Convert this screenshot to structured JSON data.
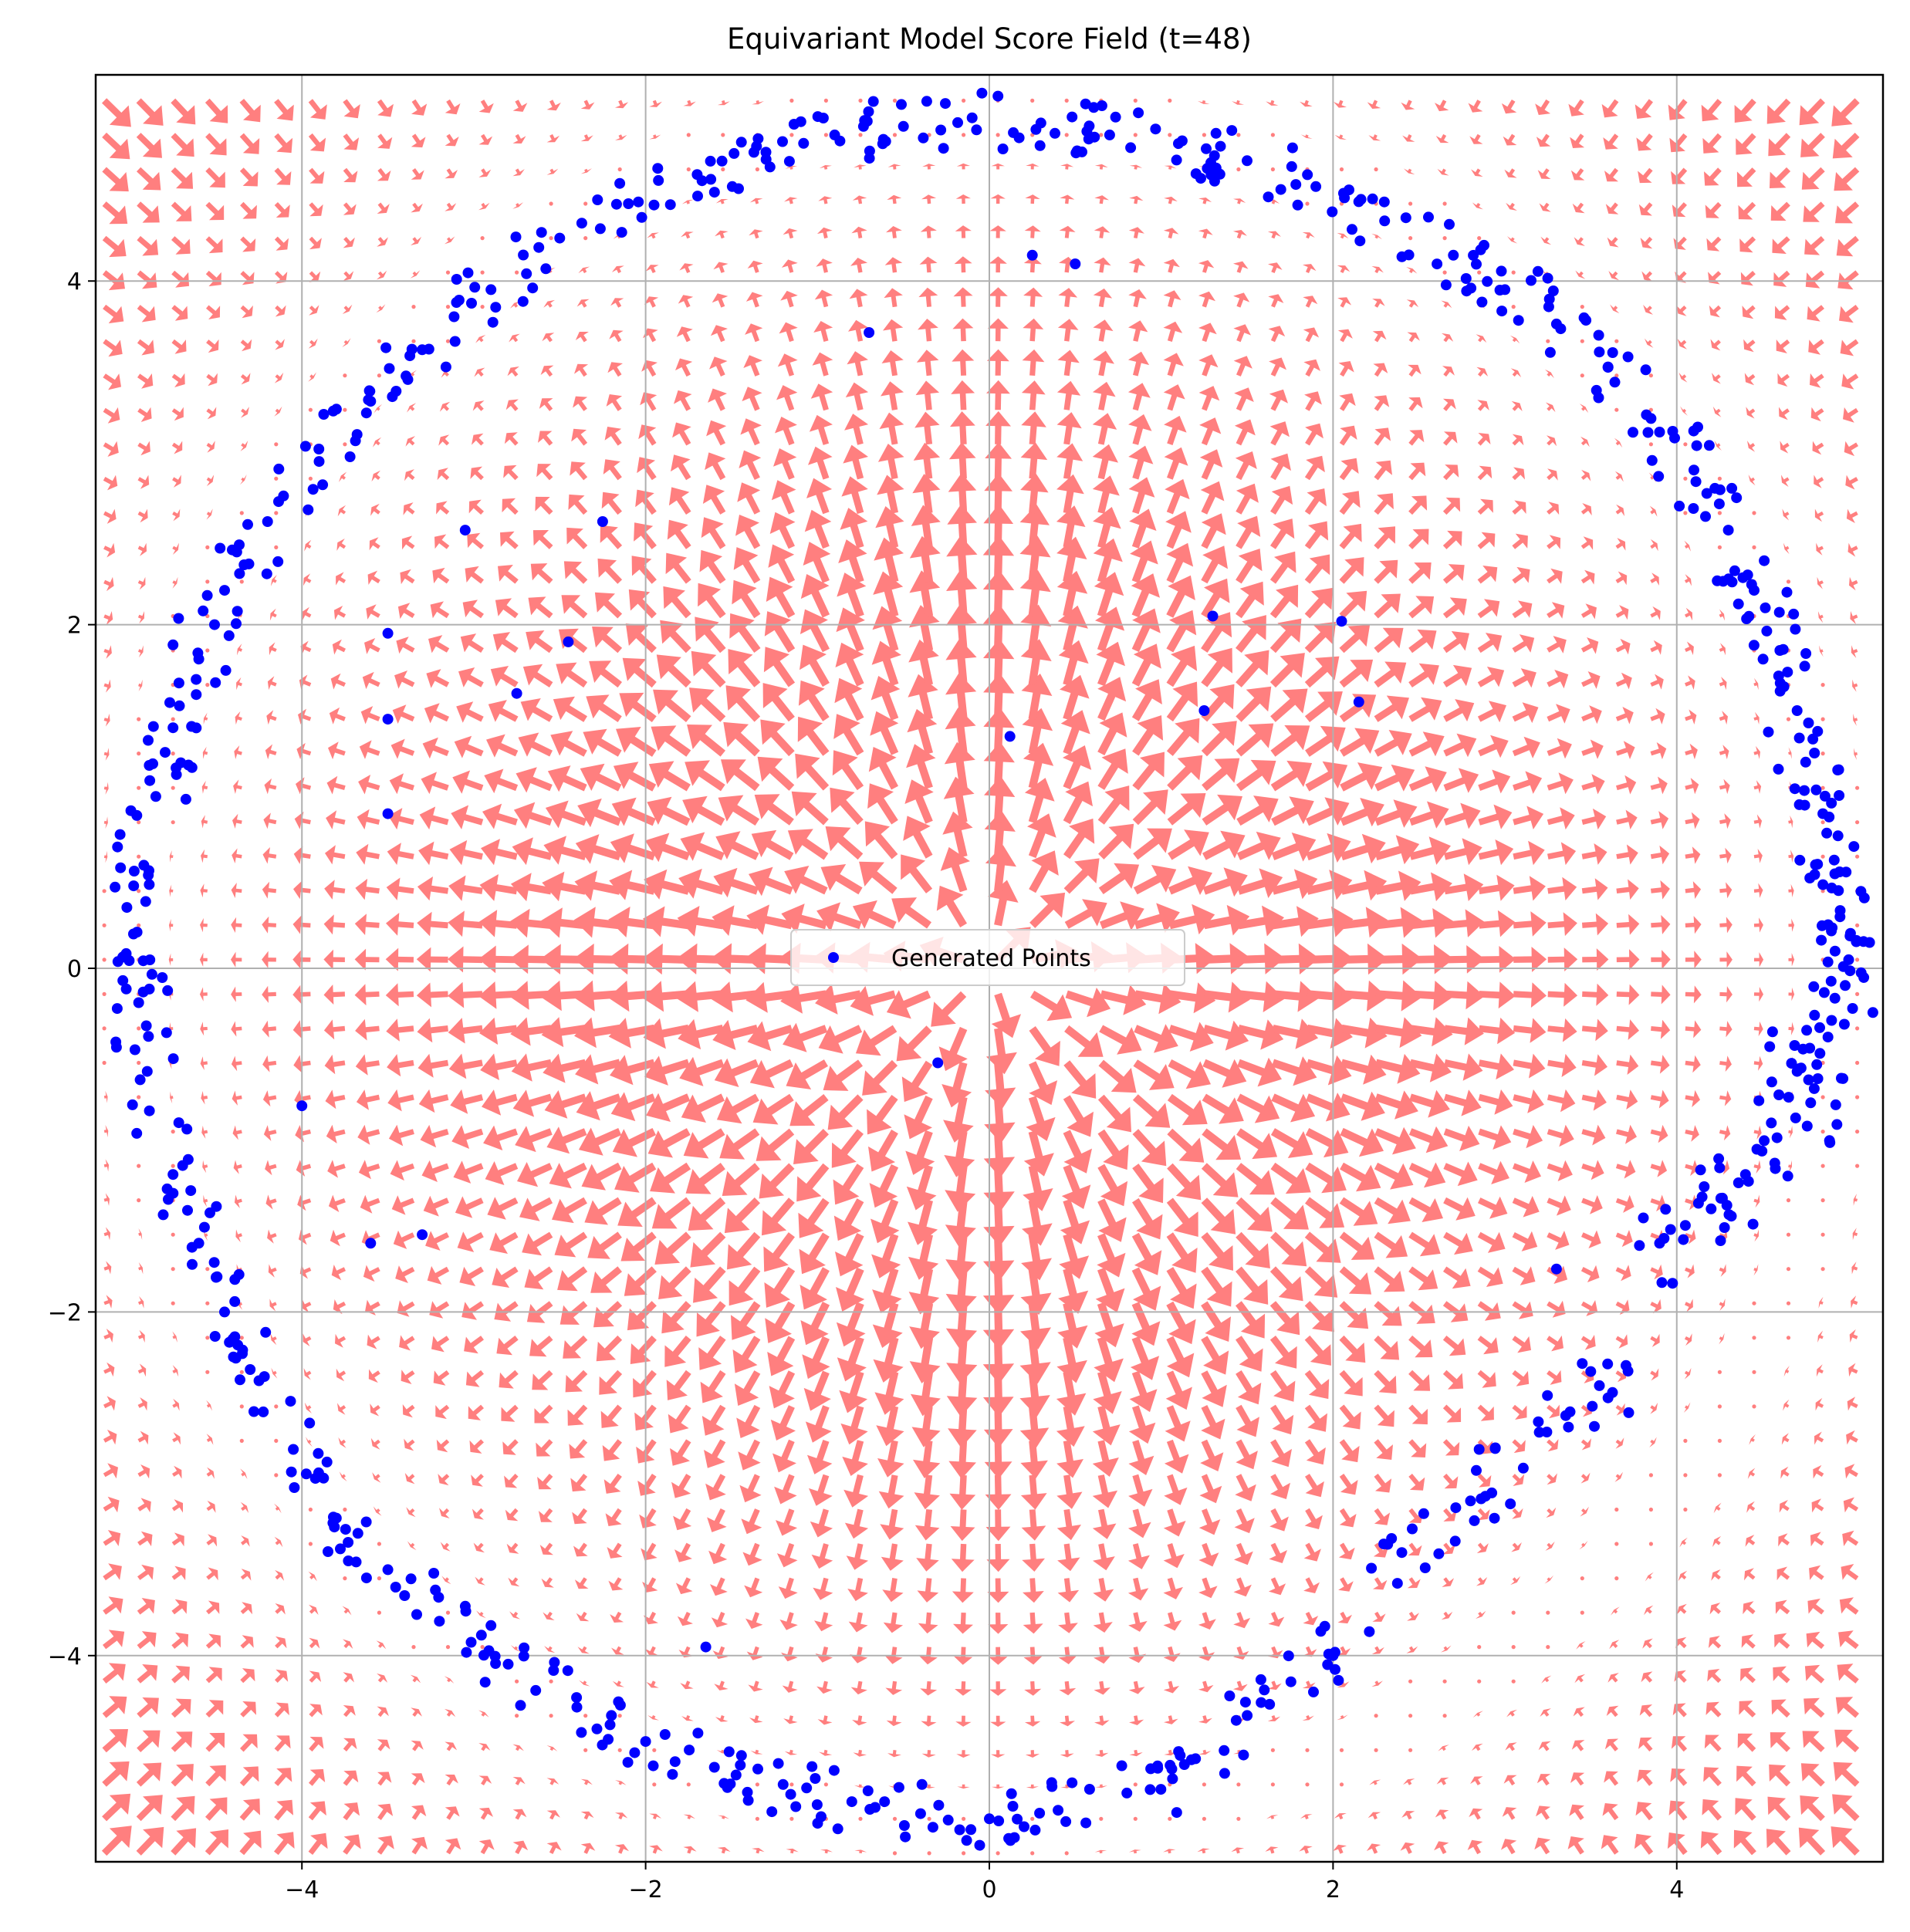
{
  "chart_data": {
    "type": "scatter",
    "title": "Equivariant Model Score Field (t=48)",
    "xlabel": "",
    "ylabel": "",
    "xlim": [
      -5.2,
      5.2
    ],
    "ylim": [
      -5.2,
      5.2
    ],
    "x_ticks": [
      -4,
      -2,
      0,
      2,
      4
    ],
    "y_ticks": [
      -4,
      -2,
      0,
      2,
      4
    ],
    "x_tick_labels": [
      "−4",
      "−2",
      "0",
      "2",
      "4"
    ],
    "y_tick_labels": [
      "−4",
      "−2",
      "0",
      "2",
      "4"
    ],
    "grid": true,
    "legend": {
      "position": "center",
      "entries": [
        "Generated Points"
      ]
    },
    "colors": {
      "points": "#0000ff",
      "arrows": "#ff7f7f",
      "grid": "#b0b0b0"
    },
    "vector_field": {
      "kind": "quiver",
      "description_values": "score field pointing toward the ring of radius ~5",
      "ring_radius": 5.0
    },
    "series": [
      {
        "name": "Generated Points",
        "ring_radius": 4.9,
        "points_ring_sample": [
          [
            5.0,
            0.05
          ],
          [
            4.98,
            -0.1
          ],
          [
            4.95,
            0.3
          ],
          [
            4.92,
            0.55
          ],
          [
            4.88,
            -0.4
          ],
          [
            4.85,
            0.9
          ],
          [
            4.8,
            -0.7
          ],
          [
            4.75,
            1.2
          ],
          [
            4.7,
            1.5
          ],
          [
            4.6,
            1.85
          ],
          [
            4.45,
            2.2
          ],
          [
            4.3,
            2.55
          ],
          [
            4.1,
            2.9
          ],
          [
            3.85,
            3.2
          ],
          [
            3.6,
            3.5
          ],
          [
            3.3,
            3.75
          ],
          [
            3.0,
            3.95
          ],
          [
            2.7,
            4.15
          ],
          [
            2.3,
            4.35
          ],
          [
            1.9,
            4.55
          ],
          [
            1.5,
            4.7
          ],
          [
            1.1,
            4.8
          ],
          [
            0.7,
            4.85
          ],
          [
            0.3,
            4.92
          ],
          [
            -0.1,
            4.95
          ],
          [
            -0.5,
            4.9
          ],
          [
            -0.9,
            4.85
          ],
          [
            -1.3,
            4.75
          ],
          [
            -1.7,
            4.62
          ],
          [
            -2.1,
            4.45
          ],
          [
            -2.5,
            4.25
          ],
          [
            -2.9,
            3.95
          ],
          [
            -3.3,
            3.6
          ],
          [
            -3.6,
            3.3
          ],
          [
            -3.9,
            2.95
          ],
          [
            -4.2,
            2.6
          ],
          [
            -4.45,
            2.2
          ],
          [
            -4.6,
            1.8
          ],
          [
            -4.75,
            1.4
          ],
          [
            -4.85,
            1.0
          ],
          [
            -4.92,
            0.6
          ],
          [
            -4.98,
            0.2
          ],
          [
            -4.95,
            -0.2
          ],
          [
            -4.9,
            -0.6
          ],
          [
            -4.75,
            -1.2
          ],
          [
            -4.6,
            -1.6
          ],
          [
            -4.45,
            -2.0
          ],
          [
            -4.25,
            -2.4
          ],
          [
            -4.05,
            -2.8
          ],
          [
            -3.8,
            -3.2
          ],
          [
            -3.5,
            -3.5
          ],
          [
            -3.2,
            -3.8
          ],
          [
            -2.8,
            -4.05
          ],
          [
            -2.4,
            -4.3
          ],
          [
            -2.0,
            -4.5
          ],
          [
            -1.6,
            -4.65
          ],
          [
            -1.2,
            -4.75
          ],
          [
            -0.8,
            -4.85
          ],
          [
            -0.4,
            -4.92
          ],
          [
            0.0,
            -4.95
          ],
          [
            0.4,
            -4.9
          ],
          [
            0.8,
            -4.8
          ],
          [
            1.2,
            -4.6
          ],
          [
            1.6,
            -4.2
          ],
          [
            2.0,
            -4.0
          ],
          [
            2.4,
            -3.4
          ],
          [
            2.8,
            -3.1
          ],
          [
            3.2,
            -2.7
          ],
          [
            3.6,
            -2.5
          ],
          [
            3.9,
            -1.6
          ],
          [
            4.2,
            -1.4
          ],
          [
            4.4,
            -1.2
          ],
          [
            4.55,
            -0.9
          ],
          [
            4.7,
            -0.6
          ]
        ],
        "points_interior": [
          [
            -0.7,
            3.7
          ],
          [
            0.25,
            4.15
          ],
          [
            0.5,
            4.1
          ],
          [
            1.3,
            2.05
          ],
          [
            2.05,
            2.02
          ],
          [
            2.15,
            1.55
          ],
          [
            1.25,
            1.5
          ],
          [
            0.12,
            1.35
          ],
          [
            -0.3,
            -0.55
          ],
          [
            -2.75,
            1.6
          ],
          [
            -2.45,
            1.9
          ],
          [
            -3.5,
            1.95
          ],
          [
            -3.5,
            1.45
          ],
          [
            -3.5,
            0.9
          ],
          [
            -4.0,
            -0.8
          ],
          [
            -3.6,
            -1.6
          ],
          [
            -2.25,
            2.6
          ],
          [
            -3.05,
            2.55
          ],
          [
            -3.3,
            -1.55
          ],
          [
            -1.65,
            -3.95
          ],
          [
            3.3,
            -1.75
          ],
          [
            2.85,
            -2.8
          ],
          [
            3.45,
            -2.3
          ]
        ]
      }
    ]
  }
}
